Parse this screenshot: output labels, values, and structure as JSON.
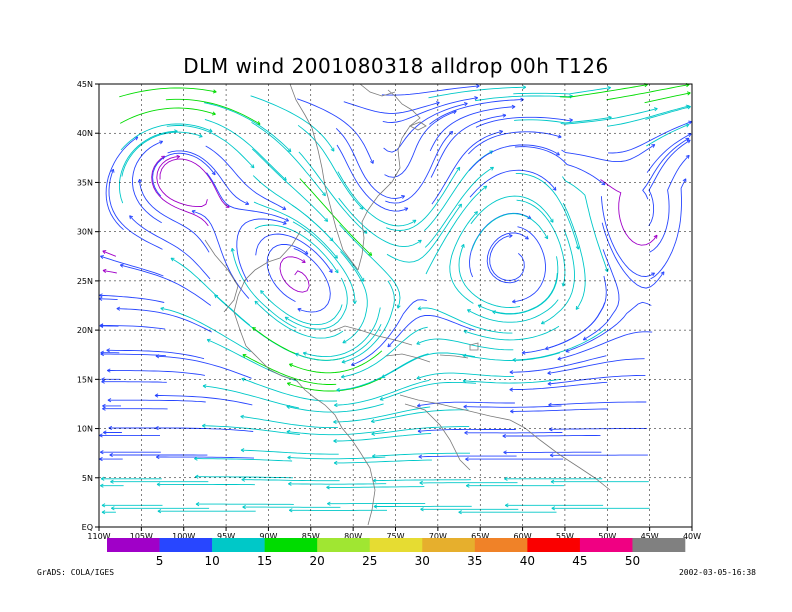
{
  "chart_data": {
    "type": "streamline",
    "title": "DLM wind 2001080318 alldrop 00h T126",
    "x_ticks": [
      "110W",
      "105W",
      "100W",
      "95W",
      "90W",
      "85W",
      "80W",
      "75W",
      "70W",
      "65W",
      "60W",
      "55W",
      "50W",
      "45W",
      "40W"
    ],
    "y_ticks": [
      "EQ",
      "5N",
      "10N",
      "15N",
      "20N",
      "25N",
      "30N",
      "35N",
      "40N",
      "45N"
    ],
    "xlim": [
      -110,
      -40
    ],
    "ylim": [
      0,
      45
    ],
    "grid": true,
    "colorbar": {
      "labels": [
        "5",
        "10",
        "15",
        "20",
        "25",
        "30",
        "35",
        "40",
        "45",
        "50"
      ],
      "colors": [
        "#a000c8",
        "#2846ff",
        "#00c8c8",
        "#00dc00",
        "#a0e632",
        "#e6dc32",
        "#e6af2d",
        "#f08228",
        "#fa0000",
        "#f00082",
        "#808080"
      ]
    },
    "circulation_centers": [
      {
        "lon": -101,
        "lat": 38,
        "type": "anticyclone"
      },
      {
        "lon": -61,
        "lat": 26,
        "type": "anticyclone"
      },
      {
        "lon": -82,
        "lat": 20,
        "type": "anticyclone"
      },
      {
        "lon": -88,
        "lat": 26.5,
        "type": "anticyclone"
      },
      {
        "lon": -76,
        "lat": 34,
        "type": "cyclone"
      },
      {
        "lon": -47,
        "lat": 31,
        "type": "cyclone"
      }
    ]
  },
  "footer": {
    "left": "GrADS: COLA/IGES",
    "right": "2002-03-05-16:38"
  }
}
